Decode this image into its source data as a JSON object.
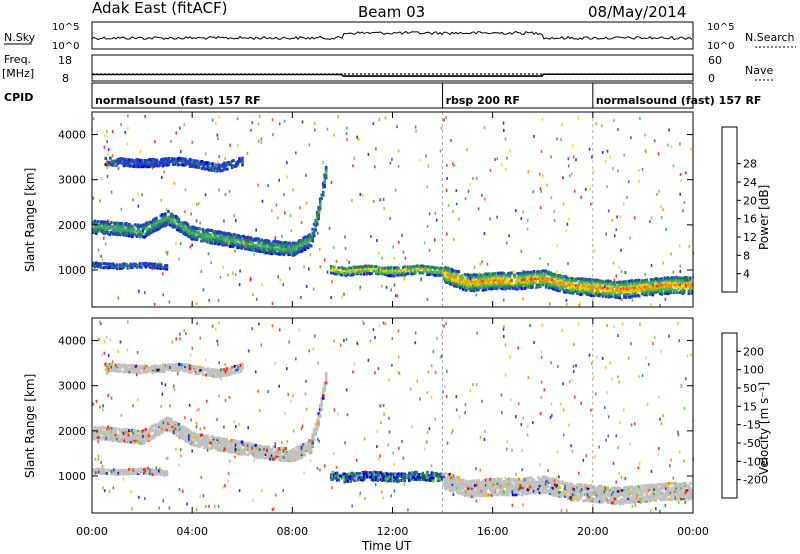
{
  "header": {
    "title": "Adak East (fitACF)",
    "beam": "Beam 03",
    "date": "08/May/2014"
  },
  "strips": {
    "nsky_label": "N.Sky",
    "nsky_ticks": [
      "10^5",
      "10^0"
    ],
    "nsearch_label": "N.Search",
    "nsearch_ticks": [
      "10^5",
      "10^0"
    ],
    "freq_label_1": "Freq.",
    "freq_label_2": "[MHz]",
    "freq_ticks": [
      "18",
      "8"
    ],
    "nave_label": "Nave",
    "nave_ticks": [
      "60",
      "0"
    ],
    "cpid_label": "CPID",
    "cpid_segments": [
      {
        "label": "normalsound (fast) 157 RF",
        "start": 0,
        "end": 14
      },
      {
        "label": "rbsp 200 RF",
        "start": 14,
        "end": 20
      },
      {
        "label": "normalsound (fast) 157 RF",
        "start": 20,
        "end": 24
      }
    ],
    "freq_series": [
      {
        "start": 0,
        "end": 10,
        "mhz": 10.5
      },
      {
        "start": 10,
        "end": 18,
        "mhz": 9.9
      },
      {
        "start": 18,
        "end": 24,
        "mhz": 10.6
      }
    ]
  },
  "chart_data": [
    {
      "type": "heatmap",
      "name": "power",
      "ylabel": "Slant Range [km]",
      "xlabel": "",
      "ylim": [
        180,
        4500
      ],
      "xlim": [
        0,
        24
      ],
      "yticks": [
        "1000",
        "2000",
        "3000",
        "4000"
      ],
      "xticks": [
        "00:00",
        "04:00",
        "08:00",
        "12:00",
        "16:00",
        "20:00",
        "00:00"
      ],
      "colorbar": {
        "label": "Power [dB]",
        "ticks": [
          "4",
          "8",
          "12",
          "16",
          "20",
          "24",
          "28"
        ],
        "colors": [
          "#0000ff",
          "#2040c0",
          "#208060",
          "#40a070",
          "#60c040",
          "#f0d000",
          "#f09000",
          "#f04000",
          "#ff0000"
        ]
      },
      "bands": [
        {
          "label": "band-a",
          "points": [
            [
              0,
              2000
            ],
            [
              1,
              1950
            ],
            [
              2,
              1900
            ],
            [
              3,
              2200
            ],
            [
              4,
              1850
            ],
            [
              5,
              1750
            ],
            [
              6,
              1650
            ],
            [
              7,
              1550
            ],
            [
              8,
              1500
            ],
            [
              8.7,
              1700
            ],
            [
              9,
              2300
            ],
            [
              9.3,
              3200
            ]
          ],
          "width": 300,
          "level": 10
        },
        {
          "label": "band-b",
          "points": [
            [
              0.5,
              3450
            ],
            [
              2,
              3400
            ],
            [
              3.5,
              3450
            ],
            [
              5,
              3300
            ],
            [
              6,
              3450
            ]
          ],
          "width": 180,
          "level": 4
        },
        {
          "label": "band-c",
          "points": [
            [
              0,
              1150
            ],
            [
              1,
              1120
            ],
            [
              2,
              1150
            ],
            [
              3,
              1100
            ]
          ],
          "width": 120,
          "level": 5
        },
        {
          "label": "band-d",
          "points": [
            [
              9.5,
              1050
            ],
            [
              10,
              1000
            ],
            [
              11,
              1050
            ],
            [
              12,
              1000
            ],
            [
              13,
              1050
            ],
            [
              14,
              1000
            ]
          ],
          "width": 200,
          "level": 20
        },
        {
          "label": "band-e",
          "points": [
            [
              14,
              950
            ],
            [
              15,
              750
            ],
            [
              16,
              800
            ],
            [
              17,
              800
            ],
            [
              18,
              850
            ],
            [
              19,
              700
            ],
            [
              20,
              650
            ],
            [
              21,
              600
            ],
            [
              22,
              650
            ],
            [
              23,
              700
            ],
            [
              24,
              700
            ]
          ],
          "width": 380,
          "level": 22
        }
      ]
    },
    {
      "type": "heatmap",
      "name": "velocity",
      "ylabel": "Slant Range [km]",
      "xlabel": "Time UT",
      "ylim": [
        180,
        4500
      ],
      "xlim": [
        0,
        24
      ],
      "yticks": [
        "1000",
        "2000",
        "3000",
        "4000"
      ],
      "xticks": [
        "00:00",
        "04:00",
        "08:00",
        "12:00",
        "16:00",
        "20:00",
        "00:00"
      ],
      "colorbar": {
        "label": "Velocity [m s⁻¹]",
        "ticks": [
          "200",
          "100",
          "50",
          "15",
          "-15",
          "-50",
          "-100",
          "-200"
        ],
        "colors": [
          "#0000ff",
          "#2050c0",
          "#208040",
          "#60c040",
          "#c0c0c0",
          "#f0c000",
          "#f08000",
          "#f04000",
          "#ff0000"
        ]
      },
      "bands": [
        {
          "label": "band-a",
          "points": [
            [
              0,
              2000
            ],
            [
              1,
              1950
            ],
            [
              2,
              1900
            ],
            [
              3,
              2200
            ],
            [
              4,
              1850
            ],
            [
              5,
              1750
            ],
            [
              6,
              1650
            ],
            [
              7,
              1550
            ],
            [
              8,
              1500
            ],
            [
              8.7,
              1700
            ],
            [
              9,
              2300
            ],
            [
              9.3,
              3200
            ]
          ],
          "width": 300,
          "level": 0
        },
        {
          "label": "band-b",
          "points": [
            [
              0.5,
              3450
            ],
            [
              2,
              3400
            ],
            [
              3.5,
              3450
            ],
            [
              5,
              3300
            ],
            [
              6,
              3450
            ]
          ],
          "width": 180,
          "level": 0
        },
        {
          "label": "band-c",
          "points": [
            [
              0,
              1150
            ],
            [
              1,
              1120
            ],
            [
              2,
              1150
            ],
            [
              3,
              1100
            ]
          ],
          "width": 120,
          "level": 0
        },
        {
          "label": "band-d",
          "points": [
            [
              9.5,
              1050
            ],
            [
              10,
              1000
            ],
            [
              11,
              1050
            ],
            [
              12,
              1000
            ],
            [
              13,
              1050
            ],
            [
              14,
              1000
            ]
          ],
          "width": 200,
          "level": 30
        },
        {
          "label": "band-e",
          "points": [
            [
              14,
              950
            ],
            [
              15,
              750
            ],
            [
              16,
              800
            ],
            [
              17,
              800
            ],
            [
              18,
              850
            ],
            [
              19,
              700
            ],
            [
              20,
              650
            ],
            [
              21,
              600
            ],
            [
              22,
              650
            ],
            [
              23,
              700
            ],
            [
              24,
              700
            ]
          ],
          "width": 380,
          "level": 0
        }
      ]
    }
  ]
}
